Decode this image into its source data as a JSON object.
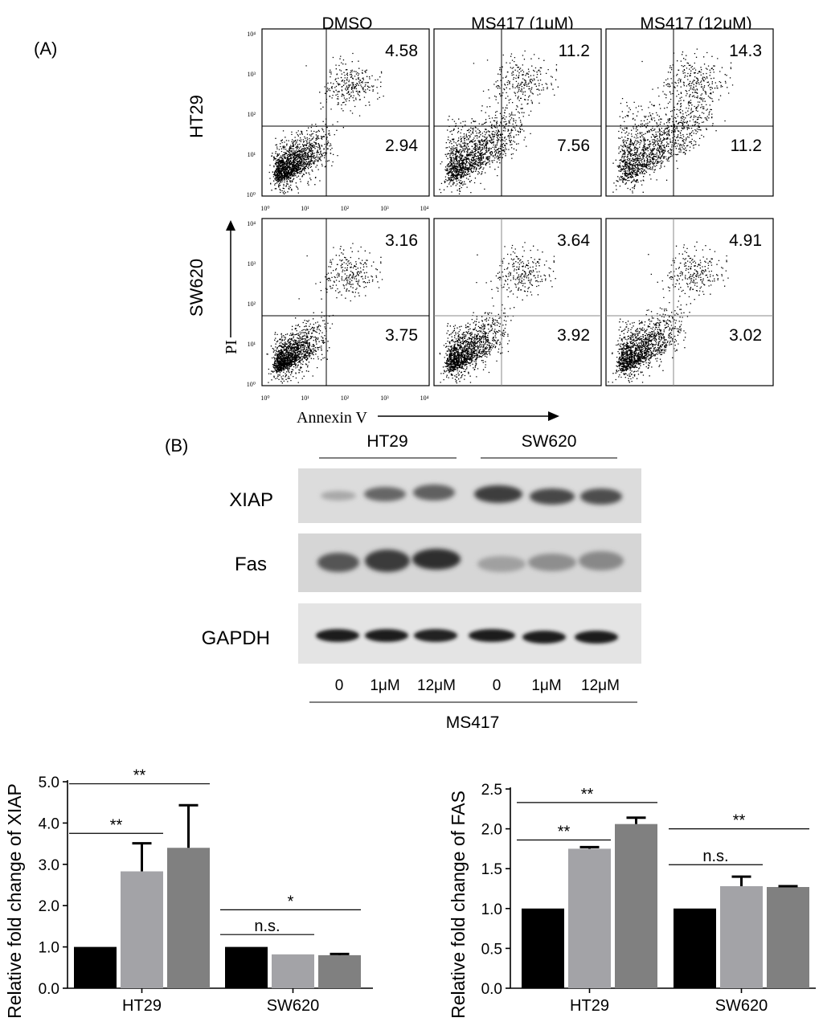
{
  "panel_a": {
    "label": "(A)",
    "columns": [
      "DMSO",
      "MS417 (1μM)",
      "MS417 (12μM)"
    ],
    "rows": [
      {
        "name": "HT29",
        "plots": [
          {
            "upper_right": "4.58",
            "lower_right": "2.94"
          },
          {
            "upper_right": "11.2",
            "lower_right": "7.56"
          },
          {
            "upper_right": "14.3",
            "lower_right": "11.2"
          }
        ]
      },
      {
        "name": "SW620",
        "plots": [
          {
            "upper_right": "3.16",
            "lower_right": "3.75"
          },
          {
            "upper_right": "3.64",
            "lower_right": "3.92"
          },
          {
            "upper_right": "4.91",
            "lower_right": "3.02"
          }
        ]
      }
    ],
    "y_axis_label": "PI",
    "x_axis_label": "Annexin V",
    "tick_labels": [
      "10⁰",
      "10¹",
      "10²",
      "10³",
      "10⁴"
    ]
  },
  "panel_b": {
    "label": "(B)",
    "groups": [
      "HT29",
      "SW620"
    ],
    "proteins": [
      "XIAP",
      "Fas",
      "GAPDH"
    ],
    "lanes": [
      "0",
      "1μM",
      "12μM",
      "0",
      "1μM",
      "12μM"
    ],
    "treatment": "MS417"
  },
  "chart_data": [
    {
      "type": "bar",
      "categories": [
        "HT29",
        "SW620"
      ],
      "ylabel": "Relative fold change of XIAP",
      "ylim": [
        0,
        5
      ],
      "yticks": [
        "0.0",
        "1.0",
        "2.0",
        "3.0",
        "4.0",
        "5.0"
      ],
      "series": [
        {
          "values": [
            1.0,
            1.0
          ],
          "errors": [
            0,
            0
          ],
          "color": "#000000"
        },
        {
          "values": [
            2.83,
            0.82
          ],
          "errors": [
            0.68,
            0
          ],
          "color": "#a3a3a7"
        },
        {
          "values": [
            3.4,
            0.8
          ],
          "errors": [
            1.03,
            0.03
          ],
          "color": "#808080"
        }
      ],
      "annotations": [
        {
          "text": "**",
          "group": 0,
          "from": 0,
          "to": 1,
          "y": 3.75
        },
        {
          "text": "**",
          "group": 0,
          "from": 0,
          "to": 2,
          "y": 4.95
        },
        {
          "text": "n.s.",
          "group": 1,
          "from": 0,
          "to": 1,
          "y": 1.3
        },
        {
          "text": "*",
          "group": 1,
          "from": 0,
          "to": 2,
          "y": 1.9
        }
      ]
    },
    {
      "type": "bar",
      "categories": [
        "HT29",
        "SW620"
      ],
      "ylabel": "Relative fold change of FAS",
      "ylim": [
        0,
        2.5
      ],
      "yticks": [
        "0.0",
        "0.5",
        "1.0",
        "1.5",
        "2.0",
        "2.5"
      ],
      "series": [
        {
          "values": [
            1.0,
            1.0
          ],
          "errors": [
            0,
            0
          ],
          "color": "#000000"
        },
        {
          "values": [
            1.75,
            1.28
          ],
          "errors": [
            0.02,
            0.12
          ],
          "color": "#a3a3a7"
        },
        {
          "values": [
            2.06,
            1.27
          ],
          "errors": [
            0.08,
            0.01
          ],
          "color": "#808080"
        }
      ],
      "annotations": [
        {
          "text": "**",
          "group": 0,
          "from": 0,
          "to": 1,
          "y": 1.86
        },
        {
          "text": "**",
          "group": 0,
          "from": 0,
          "to": 2,
          "y": 2.33
        },
        {
          "text": "n.s.",
          "group": 1,
          "from": 0,
          "to": 1,
          "y": 1.55
        },
        {
          "text": "**",
          "group": 1,
          "from": 0,
          "to": 2,
          "y": 2.0
        }
      ]
    }
  ]
}
